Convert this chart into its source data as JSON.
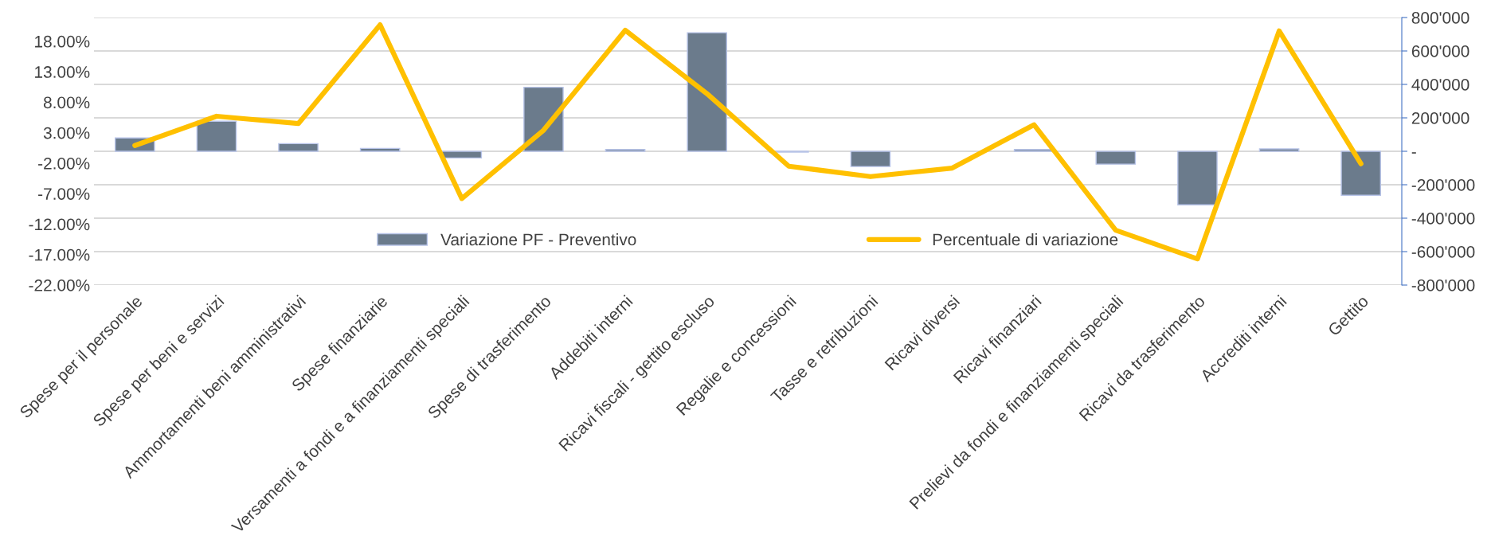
{
  "chart_data": {
    "type": "bar",
    "categories": [
      "Spese per il personale",
      "Spese per beni e servizi",
      "Ammortamenti beni amministrativi",
      "Spese finanziarie",
      "Versamenti a fondi e a finanziamenti speciali",
      "Spese di trasferimento",
      "Addebiti interni",
      "Ricavi fiscali - gettito escluso",
      "Regalie e concessioni",
      "Tasse e retribuzioni",
      "Ricavi diversi",
      "Ricavi finanziari",
      "Prelievi da fondi e finanziamenti speciali",
      "Ricavi da trasferimento",
      "Accrediti interni",
      "Gettito"
    ],
    "series": [
      {
        "name": "Variazione PF - Preventivo",
        "axis": "y2",
        "color": "#6b7b8c",
        "values": [
          80000,
          180000,
          46000,
          17000,
          -40000,
          383000,
          11000,
          709000,
          -5000,
          -91000,
          null,
          11000,
          -77000,
          -320000,
          14000,
          -263000
        ]
      },
      {
        "name": "Percentuale di variazione",
        "type": "line",
        "color": "#ffc000",
        "values": [
          0.9,
          5.7,
          4.5,
          20.7,
          -7.8,
          3.4,
          19.8,
          9.4,
          -2.5,
          -4.2,
          -2.8,
          4.3,
          -13.0,
          -17.7,
          19.7,
          -2.1
        ]
      }
    ],
    "ylim": [
      -22,
      21.9
    ],
    "yticks": [
      {
        "value": -22,
        "label": "-22.00%"
      },
      {
        "value": -17,
        "label": "-17.00%"
      },
      {
        "value": -12,
        "label": "-12.00%"
      },
      {
        "value": -7,
        "label": "-7.00%"
      },
      {
        "value": -2,
        "label": "-2.00%"
      },
      {
        "value": 3,
        "label": "3.00%"
      },
      {
        "value": 8,
        "label": "8.00%"
      },
      {
        "value": 13,
        "label": "13.00%"
      },
      {
        "value": 18,
        "label": "18.00%"
      }
    ],
    "y2lim": [
      -800000,
      800000
    ],
    "y2ticks": [
      {
        "value": -800000,
        "label": "-800'000"
      },
      {
        "value": -600000,
        "label": "-600'000"
      },
      {
        "value": -400000,
        "label": "-400'000"
      },
      {
        "value": -200000,
        "label": "-200'000"
      },
      {
        "value": 0,
        "label": "-"
      },
      {
        "value": 200000,
        "label": "200'000"
      },
      {
        "value": 400000,
        "label": "400'000"
      },
      {
        "value": 600000,
        "label": "600'000"
      },
      {
        "value": 800000,
        "label": "800'000"
      }
    ],
    "grid": "y2",
    "legend": "bottom",
    "line_style": "solid",
    "marker": "none"
  }
}
